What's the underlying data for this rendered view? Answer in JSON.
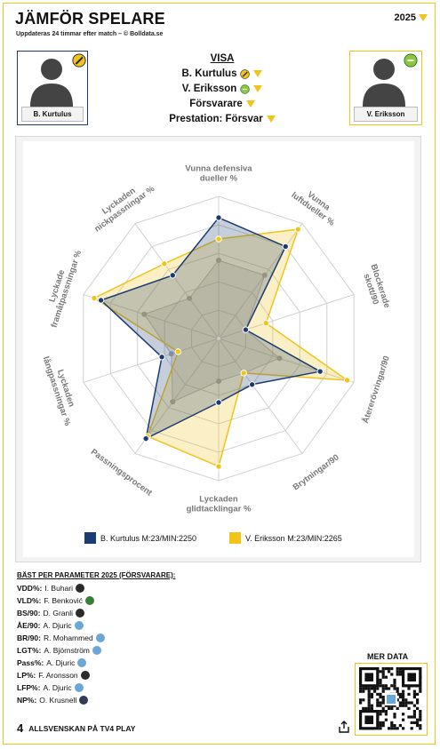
{
  "header": {
    "title": "JÄMFÖR SPELARE",
    "subtitle": "Uppdateras 24 timmar efter match – © Bolldata.se",
    "year": "2025"
  },
  "players": {
    "left": {
      "name": "B. Kurtulus",
      "color": "#1b3c72"
    },
    "right": {
      "name": "V. Eriksson",
      "color": "#f0c419"
    }
  },
  "visa": {
    "heading": "VISA",
    "player1": "B. Kurtulus",
    "player2": "V. Eriksson",
    "position": "Försvarare",
    "prestation": "Prestation: Försvar"
  },
  "chart_data": {
    "type": "radar",
    "axes": [
      "Vunna defensiva dueller %",
      "Vunna luftdueller %",
      "Blockerade skott/90",
      "Återerövringar/90",
      "Brytningar/90",
      "Lyckaden glidtacklingar %",
      "Passningsprocent",
      "Lyckaden långpassningar %",
      "Lyckade framåtpassningar %",
      "Lyckaden nickpassningar %"
    ],
    "axis_lines": [
      [
        "Vunna defensiva",
        "dueller %"
      ],
      [
        "Vunna",
        "luftdueller %"
      ],
      [
        "Blockerade",
        "skott/90"
      ],
      [
        "Återerövringar/90"
      ],
      [
        "Brytningar/90"
      ],
      [
        "Lyckaden",
        "glidtacklingar %"
      ],
      [
        "Passningsprocent"
      ],
      [
        "Lyckaden",
        "långpassningar %"
      ],
      [
        "Lyckade",
        "framåtpassningar %"
      ],
      [
        "Lyckaden",
        "nickpassningar %"
      ]
    ],
    "series": [
      {
        "name": "B. Kurtulus M:23/MIN:2250",
        "color": "#1b3c72",
        "values": [
          0.85,
          0.8,
          0.2,
          0.75,
          0.4,
          0.45,
          0.87,
          0.42,
          0.87,
          0.55
        ]
      },
      {
        "name": "V. Eriksson M:23/MIN:2265",
        "color": "#f0c419",
        "values": [
          0.7,
          0.95,
          0.35,
          0.95,
          0.3,
          0.9,
          0.85,
          0.3,
          0.92,
          0.65
        ]
      }
    ],
    "average": [
      0.55,
      0.55,
      0.2,
      0.45,
      0.3,
      0.3,
      0.55,
      0.35,
      0.55,
      0.35
    ],
    "range": [
      0,
      1
    ],
    "rings": 5
  },
  "best": {
    "title": "BÄST PER PARAMETER 2025 (FÖRSVARARE):",
    "rows": [
      {
        "label": "VDD%:",
        "player": "I. Buhari",
        "club_color": "#2b2b2b"
      },
      {
        "label": "VLD%:",
        "player": "F. Benković",
        "club_color": "#3a7d3a"
      },
      {
        "label": "BS/90:",
        "player": "D. Granli",
        "club_color": "#2b2b2b"
      },
      {
        "label": "ÅE/90:",
        "player": "A. Djuric",
        "club_color": "#6aa7d9"
      },
      {
        "label": "BR/90:",
        "player": "R. Mohammed",
        "club_color": "#6aa7d9"
      },
      {
        "label": "LGT%:",
        "player": "A. Björnström",
        "club_color": "#6aa7d9"
      },
      {
        "label": "Pass%:",
        "player": "A. Djuric",
        "club_color": "#6aa7d9"
      },
      {
        "label": "LP%:",
        "player": "F. Aronsson",
        "club_color": "#2b2b2b"
      },
      {
        "label": "LFP%:",
        "player": "A. Djuric",
        "club_color": "#6aa7d9"
      },
      {
        "label": "NP%:",
        "player": "O. Krusnell",
        "club_color": "#333a55"
      }
    ]
  },
  "footer": {
    "logo": "4",
    "text": "ALLSVENSKAN PÅ TV4 PLAY",
    "mer_data": "MER DATA"
  },
  "icons": [
    "tv4-logo-icon",
    "share-icon",
    "qr-code-icon",
    "avatar-icon"
  ]
}
